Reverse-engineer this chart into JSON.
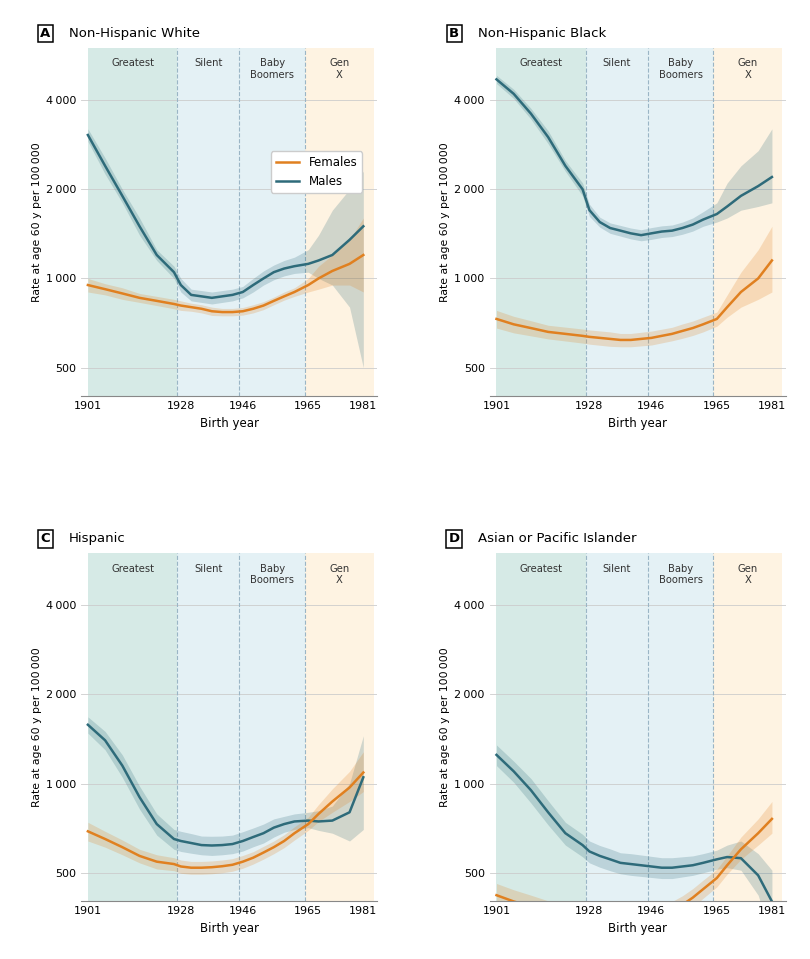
{
  "panels": [
    {
      "label": "A",
      "title": "Non-Hispanic White",
      "show_legend": true,
      "males_line": [
        3050,
        2400,
        1900,
        1500,
        1200,
        1050,
        950,
        880,
        870,
        860,
        870,
        880,
        900,
        950,
        1000,
        1050,
        1080,
        1100,
        1120,
        1150,
        1200,
        1350,
        1500
      ],
      "males_lo": [
        2900,
        2250,
        1800,
        1400,
        1150,
        1000,
        900,
        840,
        830,
        820,
        830,
        840,
        860,
        900,
        950,
        990,
        1020,
        1040,
        1050,
        1000,
        950,
        800,
        500
      ],
      "males_hi": [
        3200,
        2550,
        2000,
        1600,
        1250,
        1100,
        1000,
        920,
        910,
        900,
        910,
        920,
        940,
        1000,
        1060,
        1110,
        1150,
        1180,
        1250,
        1400,
        1700,
        2000,
        2300
      ],
      "females_line": [
        950,
        920,
        890,
        860,
        840,
        820,
        810,
        800,
        790,
        775,
        770,
        770,
        775,
        790,
        810,
        840,
        870,
        900,
        950,
        1000,
        1060,
        1120,
        1200
      ],
      "females_lo": [
        900,
        880,
        850,
        830,
        810,
        790,
        780,
        775,
        765,
        750,
        748,
        748,
        752,
        765,
        785,
        815,
        845,
        870,
        900,
        920,
        950,
        950,
        900
      ],
      "females_hi": [
        1000,
        960,
        930,
        890,
        870,
        850,
        840,
        825,
        815,
        800,
        792,
        792,
        798,
        815,
        835,
        865,
        900,
        930,
        1000,
        1100,
        1200,
        1350,
        1600
      ]
    },
    {
      "label": "B",
      "title": "Non-Hispanic Black",
      "show_legend": false,
      "males_line": [
        4700,
        4200,
        3600,
        3000,
        2400,
        2000,
        1700,
        1550,
        1480,
        1450,
        1420,
        1400,
        1420,
        1440,
        1450,
        1480,
        1520,
        1580,
        1650,
        1750,
        1900,
        2050,
        2200
      ],
      "males_lo": [
        4550,
        4050,
        3450,
        2850,
        2300,
        1900,
        1620,
        1490,
        1420,
        1390,
        1360,
        1340,
        1355,
        1375,
        1385,
        1410,
        1445,
        1500,
        1550,
        1600,
        1700,
        1750,
        1800
      ],
      "males_hi": [
        4850,
        4350,
        3750,
        3150,
        2500,
        2100,
        1780,
        1610,
        1540,
        1510,
        1480,
        1460,
        1485,
        1505,
        1515,
        1550,
        1600,
        1680,
        1800,
        2100,
        2400,
        2700,
        3200
      ],
      "females_line": [
        730,
        700,
        680,
        660,
        650,
        640,
        635,
        630,
        625,
        620,
        620,
        625,
        630,
        640,
        650,
        665,
        680,
        700,
        730,
        800,
        900,
        1000,
        1150
      ],
      "females_lo": [
        680,
        655,
        640,
        625,
        615,
        605,
        600,
        595,
        590,
        588,
        588,
        592,
        596,
        606,
        616,
        628,
        642,
        660,
        690,
        740,
        800,
        850,
        900
      ],
      "females_hi": [
        780,
        745,
        720,
        695,
        685,
        675,
        670,
        665,
        660,
        652,
        652,
        658,
        664,
        674,
        684,
        702,
        718,
        740,
        770,
        880,
        1050,
        1250,
        1500
      ]
    },
    {
      "label": "C",
      "title": "Hispanic",
      "show_legend": false,
      "males_line": [
        1580,
        1400,
        1150,
        900,
        730,
        650,
        640,
        630,
        620,
        618,
        620,
        625,
        640,
        660,
        680,
        710,
        730,
        745,
        750,
        745,
        750,
        800,
        1050
      ],
      "males_lo": [
        1480,
        1300,
        1050,
        820,
        670,
        600,
        590,
        582,
        575,
        572,
        575,
        580,
        592,
        612,
        630,
        660,
        685,
        700,
        710,
        695,
        680,
        640,
        700
      ],
      "males_hi": [
        1680,
        1500,
        1250,
        980,
        790,
        700,
        690,
        678,
        665,
        664,
        665,
        670,
        688,
        708,
        730,
        760,
        775,
        790,
        800,
        810,
        840,
        1000,
        1450
      ],
      "females_line": [
        690,
        650,
        610,
        570,
        545,
        535,
        525,
        520,
        520,
        522,
        526,
        532,
        545,
        562,
        585,
        610,
        640,
        680,
        730,
        790,
        870,
        970,
        1090
      ],
      "females_lo": [
        640,
        610,
        575,
        540,
        515,
        508,
        498,
        494,
        494,
        496,
        500,
        506,
        518,
        535,
        556,
        580,
        608,
        645,
        695,
        745,
        800,
        870,
        940
      ],
      "females_hi": [
        740,
        690,
        645,
        600,
        575,
        562,
        552,
        546,
        546,
        548,
        552,
        558,
        572,
        589,
        614,
        640,
        672,
        715,
        770,
        850,
        960,
        1100,
        1280
      ]
    },
    {
      "label": "D",
      "title": "Asian or Pacific Islander",
      "show_legend": false,
      "males_line": [
        1250,
        1100,
        950,
        800,
        680,
        620,
        590,
        570,
        555,
        540,
        535,
        530,
        525,
        520,
        520,
        525,
        530,
        540,
        555,
        565,
        560,
        490,
        400
      ],
      "males_lo": [
        1150,
        1010,
        860,
        725,
        620,
        566,
        540,
        522,
        508,
        496,
        490,
        486,
        482,
        478,
        478,
        484,
        490,
        500,
        514,
        520,
        510,
        420,
        300
      ],
      "males_hi": [
        1350,
        1190,
        1040,
        875,
        740,
        674,
        640,
        618,
        602,
        584,
        580,
        574,
        568,
        562,
        562,
        566,
        570,
        580,
        596,
        620,
        640,
        580,
        510
      ],
      "females_line": [
        420,
        400,
        385,
        370,
        360,
        355,
        350,
        348,
        346,
        345,
        345,
        347,
        352,
        360,
        372,
        390,
        412,
        440,
        480,
        530,
        600,
        680,
        760
      ],
      "females_lo": [
        380,
        362,
        350,
        338,
        330,
        326,
        322,
        320,
        318,
        317,
        317,
        319,
        324,
        332,
        344,
        362,
        382,
        410,
        448,
        495,
        555,
        620,
        680
      ],
      "females_hi": [
        460,
        438,
        420,
        402,
        390,
        384,
        378,
        376,
        374,
        373,
        373,
        375,
        380,
        388,
        400,
        418,
        442,
        472,
        514,
        570,
        660,
        760,
        870
      ]
    }
  ],
  "x_years": [
    1901,
    1906,
    1911,
    1916,
    1921,
    1926,
    1928,
    1931,
    1934,
    1937,
    1940,
    1943,
    1946,
    1949,
    1952,
    1955,
    1958,
    1961,
    1965,
    1968,
    1972,
    1977,
    1981
  ],
  "x_ticks": [
    1901,
    1928,
    1946,
    1965,
    1981
  ],
  "ylim_log": [
    400,
    6000
  ],
  "yticks": [
    500,
    1000,
    2000,
    4000
  ],
  "ylabel": "Rate at age 60 y per 100 000",
  "xlabel": "Birth year",
  "generation_bands": [
    {
      "name": "Greatest",
      "xstart": 1901,
      "xend": 1927,
      "color": "#d6eae6"
    },
    {
      "name": "Silent",
      "xstart": 1927,
      "xend": 1945,
      "color": "#e4f1f5"
    },
    {
      "name": "Baby\nBoomers",
      "xstart": 1945,
      "xend": 1964,
      "color": "#e4f1f5"
    },
    {
      "name": "Gen\nX",
      "xstart": 1964,
      "xend": 1984,
      "color": "#fef3e2"
    }
  ],
  "male_color": "#2e6b7a",
  "female_color": "#e08020",
  "ci_alpha": 0.22,
  "line_width": 1.8
}
